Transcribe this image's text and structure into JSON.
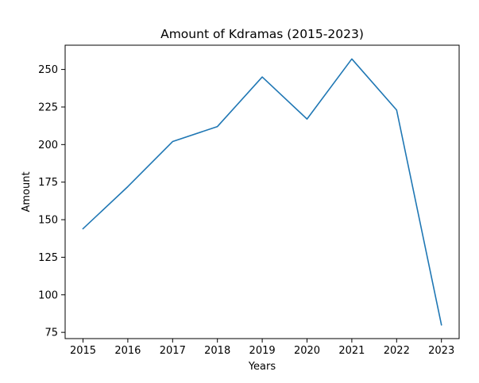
{
  "chart_data": {
    "type": "line",
    "title": "Amount of Kdramas (2015-2023)",
    "xlabel": "Years",
    "ylabel": "Amount",
    "x": [
      "2015",
      "2016",
      "2017",
      "2018",
      "2019",
      "2020",
      "2021",
      "2022",
      "2023"
    ],
    "series": [
      {
        "values": [
          144,
          172,
          202,
          212,
          245,
          217,
          257,
          223,
          80
        ],
        "color": "#1f77b4"
      }
    ],
    "ylim": [
      70.85,
      266.15
    ],
    "yticks": [
      75,
      100,
      125,
      150,
      175,
      200,
      225,
      250
    ],
    "grid": false,
    "legend": "none"
  }
}
